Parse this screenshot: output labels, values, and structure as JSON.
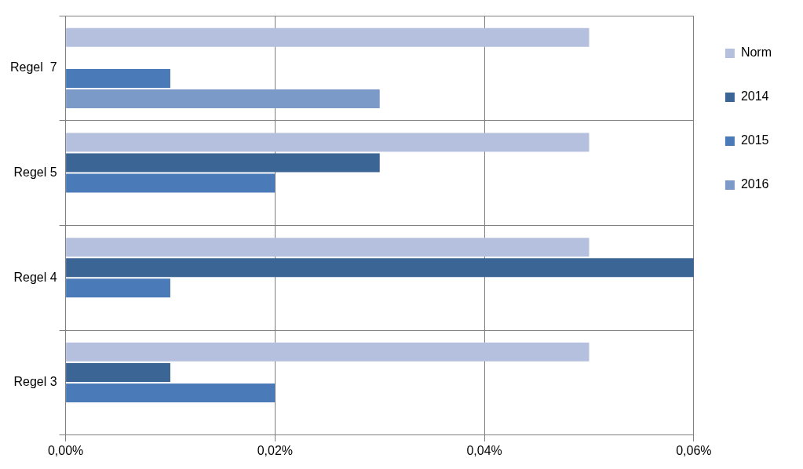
{
  "chart_data": {
    "type": "bar",
    "orientation": "horizontal",
    "categories": [
      "Regel  7",
      "Regel 5",
      "Regel 4",
      "Regel 3"
    ],
    "series": [
      {
        "name": "Norm",
        "color": "#b4c0de",
        "values": [
          0.05,
          0.05,
          0.05,
          0.05
        ]
      },
      {
        "name": "2014",
        "color": "#3a6594",
        "values": [
          0.0,
          0.03,
          0.06,
          0.01
        ]
      },
      {
        "name": "2015",
        "color": "#4a7ab8",
        "values": [
          0.01,
          0.02,
          0.01,
          0.02
        ]
      },
      {
        "name": "2016",
        "color": "#7b9ac8",
        "values": [
          0.03,
          0.0,
          0.0,
          0.0
        ]
      }
    ],
    "xlim": [
      0,
      0.06
    ],
    "xticks": [
      {
        "value": 0,
        "label": "0,00%"
      },
      {
        "value": 0.02,
        "label": "0,02%"
      },
      {
        "value": 0.04,
        "label": "0,04%"
      },
      {
        "value": 0.06,
        "label": "0,06%"
      }
    ],
    "grid": true,
    "legend": "right"
  }
}
